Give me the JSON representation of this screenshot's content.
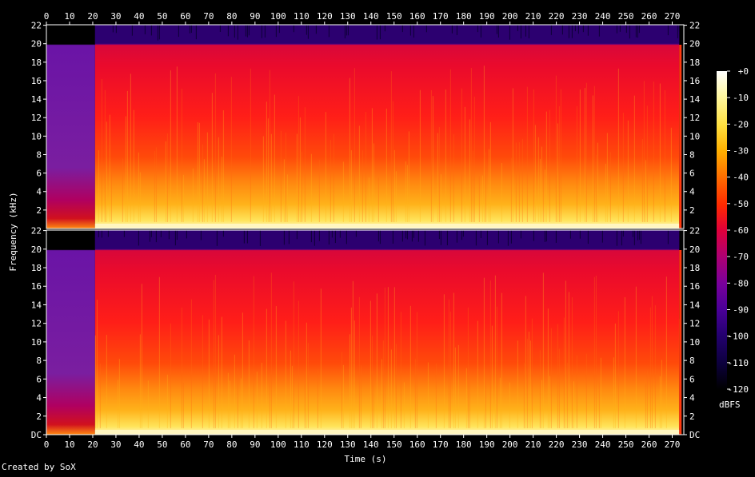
{
  "chart_data": [
    {
      "type": "heatmap",
      "panel": "channel-1",
      "x": {
        "label": "Time (s)",
        "range": [
          0,
          275
        ],
        "ticks": [
          0,
          10,
          20,
          30,
          40,
          50,
          60,
          70,
          80,
          90,
          100,
          110,
          120,
          130,
          140,
          150,
          160,
          170,
          180,
          190,
          200,
          210,
          220,
          230,
          240,
          250,
          260,
          270
        ]
      },
      "y": {
        "label": "Frequency (kHz)",
        "range": [
          0,
          22.05
        ],
        "ticks": [
          "2",
          "4",
          "6",
          "8",
          "10",
          "12",
          "14",
          "16",
          "18",
          "20",
          "22"
        ]
      },
      "segments": [
        {
          "from": 0,
          "to": 21,
          "level_db": -85,
          "max_freq_khz": 20
        },
        {
          "from": 21,
          "to": 273,
          "level_db": -50,
          "max_freq_khz": 20
        }
      ],
      "high_band": {
        "from_khz": 20,
        "to_khz": 22,
        "level_db": -110
      }
    },
    {
      "type": "heatmap",
      "panel": "channel-2",
      "x": {
        "label": "Time (s)",
        "range": [
          0,
          275
        ],
        "ticks": [
          0,
          10,
          20,
          30,
          40,
          50,
          60,
          70,
          80,
          90,
          100,
          110,
          120,
          130,
          140,
          150,
          160,
          170,
          180,
          190,
          200,
          210,
          220,
          230,
          240,
          250,
          260,
          270
        ]
      },
      "y": {
        "label": "Frequency (kHz)",
        "range": [
          0,
          22.05
        ],
        "ticks": [
          "DC",
          "2",
          "4",
          "6",
          "8",
          "10",
          "12",
          "14",
          "16",
          "18",
          "20",
          "22"
        ]
      },
      "segments": [
        {
          "from": 0,
          "to": 21,
          "level_db": -85,
          "max_freq_khz": 20
        },
        {
          "from": 21,
          "to": 273,
          "level_db": -50,
          "max_freq_khz": 20
        }
      ],
      "high_band": {
        "from_khz": 20,
        "to_khz": 22,
        "level_db": -110
      }
    }
  ],
  "axis": {
    "xlabel": "Time (s)",
    "ylabel": "Frequency (kHz)",
    "x_ticks": [
      "0",
      "10",
      "20",
      "30",
      "40",
      "50",
      "60",
      "70",
      "80",
      "90",
      "100",
      "110",
      "120",
      "130",
      "140",
      "150",
      "160",
      "170",
      "180",
      "190",
      "200",
      "210",
      "220",
      "230",
      "240",
      "250",
      "260",
      "270"
    ],
    "y_ticks_top": [
      "2",
      "4",
      "6",
      "8",
      "10",
      "12",
      "14",
      "16",
      "18",
      "20",
      "22"
    ],
    "y_ticks_bottom": [
      "DC",
      "2",
      "4",
      "6",
      "8",
      "10",
      "12",
      "14",
      "16",
      "18",
      "20",
      "22"
    ]
  },
  "colorbar": {
    "label": "dBFS",
    "ticks": [
      "+0",
      "-10",
      "-20",
      "-30",
      "-40",
      "-50",
      "-60",
      "-70",
      "-80",
      "-90",
      "-100",
      "-110",
      "-120"
    ],
    "values": [
      0,
      -10,
      -20,
      -30,
      -40,
      -50,
      -60,
      -70,
      -80,
      -90,
      -100,
      -110,
      -120
    ],
    "colors": [
      "#ffffff",
      "#fff7a0",
      "#ffe040",
      "#ffb000",
      "#ff7000",
      "#ff2a00",
      "#e0003a",
      "#b00070",
      "#78009c",
      "#4a0098",
      "#240070",
      "#0c003c",
      "#000000"
    ]
  },
  "credit": "Created by SoX"
}
